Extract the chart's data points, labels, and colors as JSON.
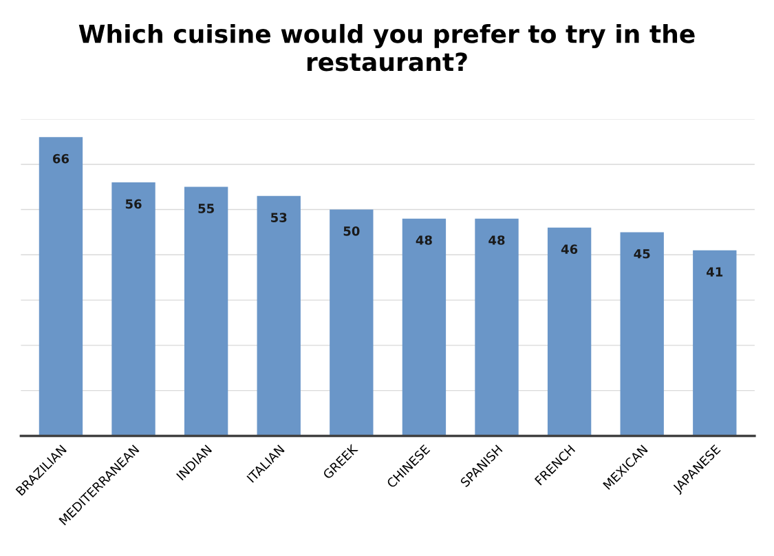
{
  "chart_data": {
    "type": "bar",
    "title": "Which cuisine would you prefer to try in the restaurant?",
    "categories": [
      "BRAZILIAN",
      "MEDITERRANEAN",
      "INDIAN",
      "ITALIAN",
      "GREEK",
      "CHINESE",
      "SPANISH",
      "FRENCH",
      "MEXICAN",
      "JAPANESE"
    ],
    "values": [
      66,
      56,
      55,
      53,
      50,
      48,
      48,
      46,
      45,
      41
    ],
    "color": "#6a96c8",
    "ylim": [
      0,
      70
    ],
    "yticks": [
      {
        "value": 0,
        "label": null
      },
      {
        "value": 10,
        "label": null
      },
      {
        "value": 20,
        "label": null
      },
      {
        "value": 30,
        "label": null
      },
      {
        "value": 40,
        "label": null
      },
      {
        "value": 50,
        "label": null
      },
      {
        "value": 60,
        "label": null
      },
      {
        "value": 70,
        "label": null
      }
    ],
    "tick_labels": "x",
    "grid": "y",
    "data_labels": true
  }
}
